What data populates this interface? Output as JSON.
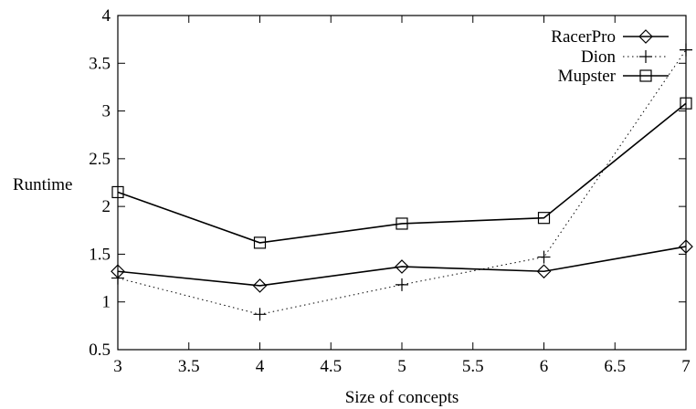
{
  "chart_data": {
    "type": "line",
    "xlabel": "Size of concepts",
    "ylabel": "Runtime",
    "xlim": [
      3,
      7
    ],
    "ylim": [
      0.5,
      4
    ],
    "xticks": [
      "3",
      "3.5",
      "4",
      "4.5",
      "5",
      "5.5",
      "6",
      "6.5",
      "7"
    ],
    "yticks": [
      "0.5",
      "1",
      "1.5",
      "2",
      "2.5",
      "3",
      "3.5",
      "4"
    ],
    "grid": false,
    "legend_position": "top-right",
    "x": [
      3,
      4,
      5,
      6,
      7
    ],
    "series": [
      {
        "name": "RacerPro",
        "values": [
          1.32,
          1.17,
          1.37,
          1.32,
          1.58
        ],
        "marker": "diamond",
        "line": "solid"
      },
      {
        "name": "Dion",
        "values": [
          1.25,
          0.87,
          1.18,
          1.47,
          3.64
        ],
        "marker": "plus",
        "line": "dotted"
      },
      {
        "name": "Mupster",
        "values": [
          2.15,
          1.62,
          1.82,
          1.88,
          3.08
        ],
        "marker": "square",
        "line": "solid"
      }
    ]
  }
}
